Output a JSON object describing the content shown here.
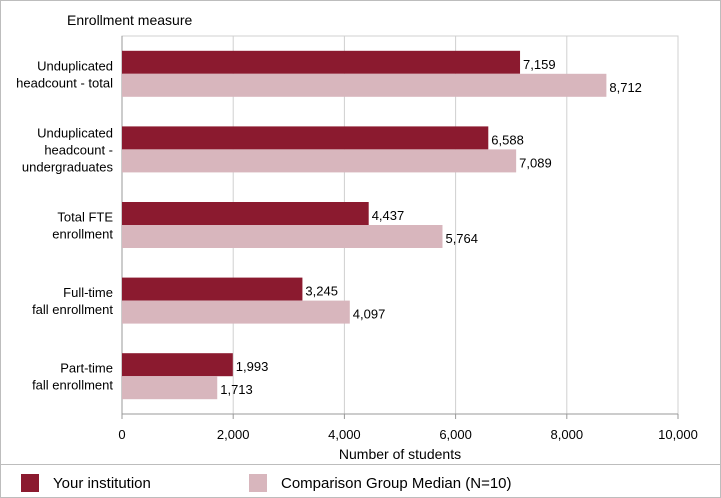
{
  "chart_data": {
    "type": "bar",
    "orientation": "horizontal",
    "y_axis_title": "Enrollment measure",
    "xlabel": "Number of students",
    "categories": [
      [
        "Unduplicated",
        "headcount - total"
      ],
      [
        "Unduplicated",
        "headcount -",
        "undergraduates"
      ],
      [
        "Total FTE",
        "enrollment"
      ],
      [
        "Full-time",
        "fall enrollment"
      ],
      [
        "Part-time",
        "fall enrollment"
      ]
    ],
    "series": [
      {
        "name": "Your institution",
        "color": "#8b1a2f",
        "values": [
          7159,
          6588,
          4437,
          3245,
          1993
        ],
        "labels": [
          "7,159",
          "6,588",
          "4,437",
          "3,245",
          "1,993"
        ]
      },
      {
        "name": "Comparison Group Median (N=10)",
        "color": "#d8b6bd",
        "values": [
          8712,
          7089,
          5764,
          4097,
          1713
        ],
        "labels": [
          "8,712",
          "7,089",
          "5,764",
          "4,097",
          "1,713"
        ]
      }
    ],
    "xlim": [
      0,
      10000
    ],
    "xticks": [
      0,
      2000,
      4000,
      6000,
      8000,
      10000
    ],
    "xtick_labels": [
      "0",
      "2,000",
      "4,000",
      "6,000",
      "8,000",
      "10,000"
    ],
    "grid": true,
    "legend_position": "bottom"
  }
}
